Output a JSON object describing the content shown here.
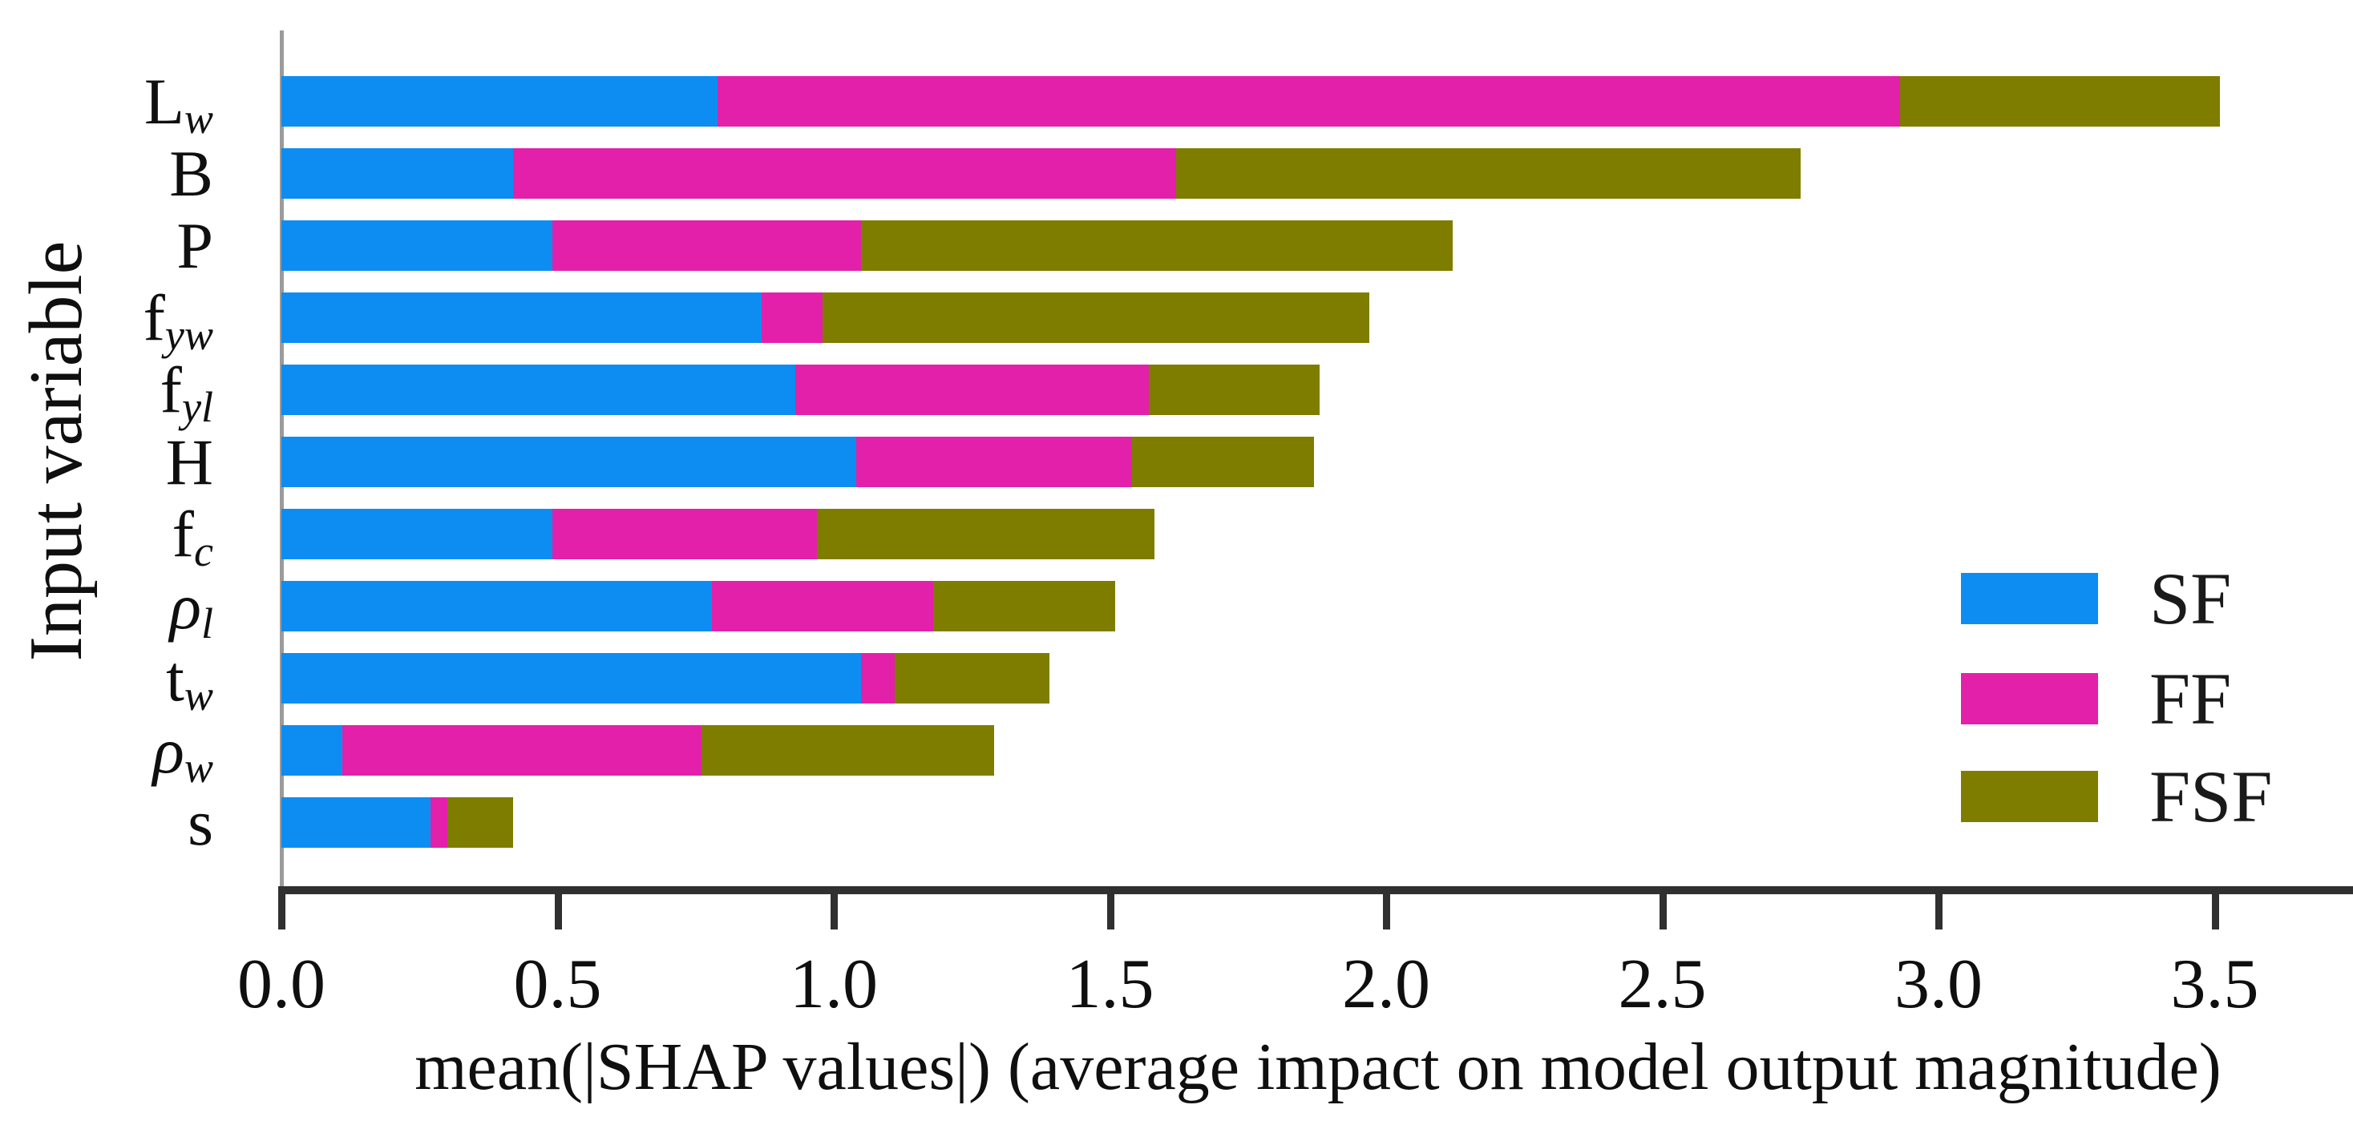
{
  "chart_data": {
    "type": "bar",
    "orientation": "horizontal",
    "stacked": true,
    "title": "",
    "xlabel": "mean(|SHAP values|) (average impact on model output magnitude)",
    "ylabel": "Input variable",
    "xlim": [
      0,
      3.75
    ],
    "grid": false,
    "xticks": [
      "0.0",
      "0.5",
      "1.0",
      "1.5",
      "2.0",
      "2.5",
      "3.0",
      "3.5"
    ],
    "xtick_values": [
      0,
      0.5,
      1.0,
      1.5,
      2.0,
      2.5,
      3.0,
      3.5
    ],
    "categories": [
      "Lw",
      "B",
      "P",
      "fyw",
      "fyl",
      "H",
      "fc",
      "ρl",
      "tw",
      "ρw",
      "s"
    ],
    "category_labels": [
      {
        "key": "Lw",
        "base": "L",
        "sub": "w",
        "base_italic": false
      },
      {
        "key": "B",
        "base": "B",
        "sub": "",
        "base_italic": false
      },
      {
        "key": "P",
        "base": "P",
        "sub": "",
        "base_italic": false
      },
      {
        "key": "fyw",
        "base": "f",
        "sub": "yw",
        "base_italic": false
      },
      {
        "key": "fyl",
        "base": "f",
        "sub": "yl",
        "base_italic": false
      },
      {
        "key": "H",
        "base": "H",
        "sub": "",
        "base_italic": false
      },
      {
        "key": "fc",
        "base": "f",
        "sub": "c",
        "base_italic": false
      },
      {
        "key": "rho_l",
        "base": "ρ",
        "sub": "l",
        "base_italic": true
      },
      {
        "key": "tw",
        "base": "t",
        "sub": "w",
        "base_italic": false
      },
      {
        "key": "rho_w",
        "base": "ρ",
        "sub": "w",
        "base_italic": true
      },
      {
        "key": "s",
        "base": "s",
        "sub": "",
        "base_italic": false
      }
    ],
    "series": [
      {
        "name": "SF",
        "color": "#0d8df2",
        "values": [
          0.79,
          0.42,
          0.49,
          0.87,
          0.93,
          1.04,
          0.49,
          0.78,
          1.05,
          0.11,
          0.27
        ]
      },
      {
        "name": "FF",
        "color": "#e320a9",
        "values": [
          2.14,
          1.2,
          0.56,
          0.11,
          0.64,
          0.5,
          0.48,
          0.4,
          0.06,
          0.65,
          0.03
        ]
      },
      {
        "name": "FSF",
        "color": "#7e7d00",
        "values": [
          0.58,
          1.13,
          1.07,
          0.99,
          0.31,
          0.33,
          0.61,
          0.33,
          0.28,
          0.53,
          0.12
        ]
      }
    ],
    "totals": [
      3.51,
      2.75,
      2.12,
      1.97,
      1.88,
      1.87,
      1.58,
      1.51,
      1.39,
      1.29,
      0.42
    ],
    "legend": {
      "position": "lower right",
      "entries": [
        "SF",
        "FF",
        "FSF"
      ]
    }
  },
  "colors": {
    "axis_line": "#303030",
    "left_spine": "#9b9b9b",
    "text": "#0f0f0f",
    "background": "#ffffff"
  }
}
